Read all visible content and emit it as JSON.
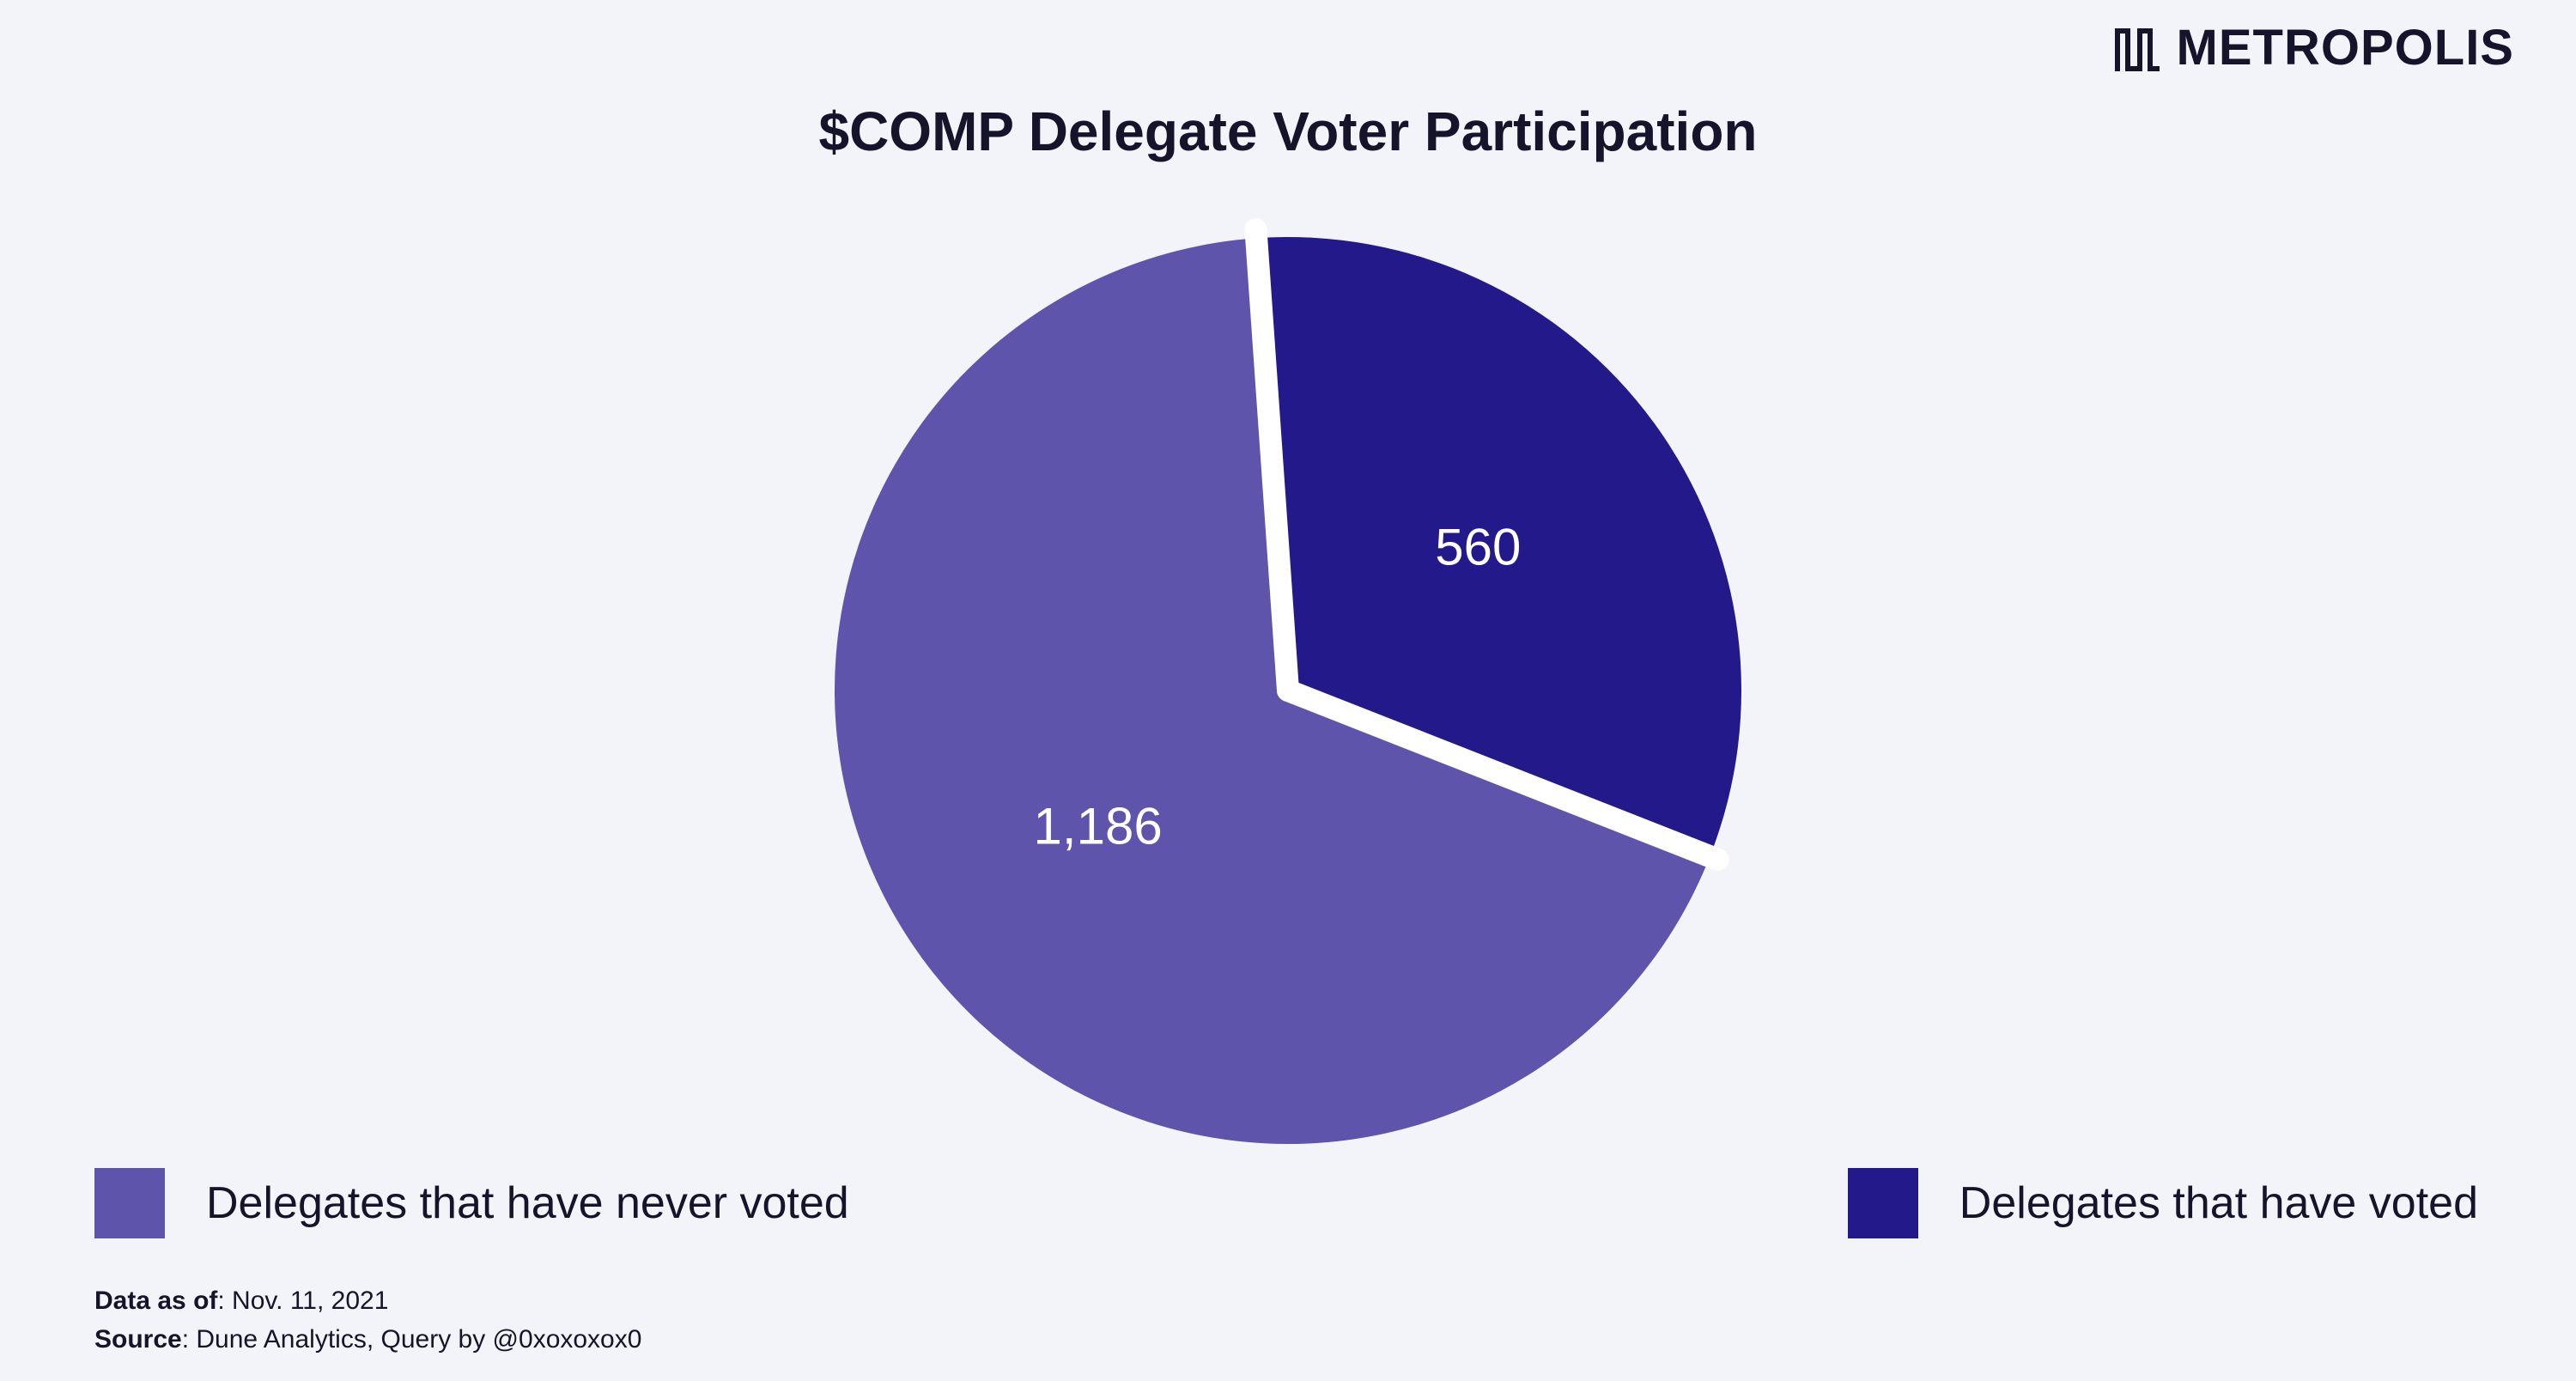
{
  "brand": {
    "name": "METROPOLIS",
    "logo_icon": "metropolis-m-logo-icon"
  },
  "chart_data": {
    "type": "pie",
    "title": "$COMP Delegate Voter Participation",
    "slices": [
      {
        "name": "Delegates that have voted",
        "value": 560,
        "label": "560",
        "color": "#23198a"
      },
      {
        "name": "Delegates that have never voted",
        "value": 1186,
        "label": "1,186",
        "color": "#5e54ac"
      }
    ],
    "start_angle_deg": -4,
    "direction": "clockwise",
    "separator_color": "#ffffff",
    "legend": [
      {
        "label": "Delegates that have never voted",
        "color": "#5e54ac",
        "position": "bottom-left"
      },
      {
        "label": "Delegates that have voted",
        "color": "#23198a",
        "position": "bottom-right"
      }
    ]
  },
  "footer": {
    "data_as_of_label": "Data as of",
    "data_as_of_value": ": Nov. 11, 2021",
    "source_label": "Source",
    "source_value": ":  Dune Analytics, Query by @0xoxoxox0"
  }
}
